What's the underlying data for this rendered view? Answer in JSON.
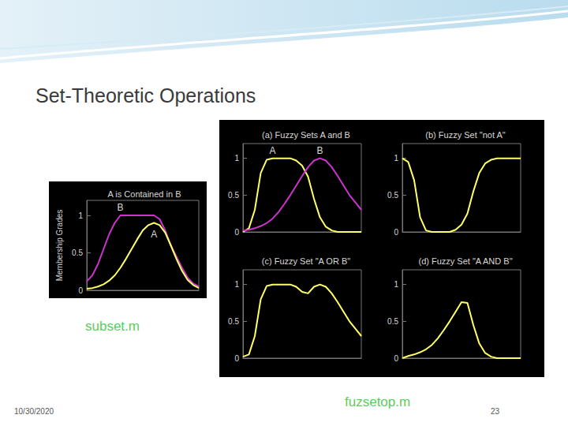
{
  "slide": {
    "title": "Set-Theoretic Operations",
    "captions": [
      "subset.m",
      "fuzsetop.m"
    ],
    "date": "10/30/2020",
    "page": "23"
  },
  "chart_data": [
    {
      "type": "line",
      "title": "A is Contained in B",
      "ylabel": "Membership Grades",
      "x": [
        0,
        5,
        10,
        15,
        20,
        25,
        30,
        35,
        40,
        45,
        50,
        55,
        60,
        65,
        70,
        75,
        80,
        85,
        90,
        95,
        100
      ],
      "series": [
        {
          "name": "B",
          "color": "#cc33cc",
          "values": [
            0.12,
            0.2,
            0.35,
            0.55,
            0.75,
            0.9,
            1,
            1,
            1,
            1,
            1,
            1,
            1,
            0.95,
            0.8,
            0.6,
            0.45,
            0.3,
            0.17,
            0.09,
            0.05
          ]
        },
        {
          "name": "A",
          "color": "#ffff66",
          "values": [
            0.02,
            0.03,
            0.05,
            0.08,
            0.13,
            0.2,
            0.3,
            0.42,
            0.55,
            0.68,
            0.8,
            0.87,
            0.9,
            0.87,
            0.77,
            0.6,
            0.42,
            0.26,
            0.14,
            0.07,
            0.03
          ]
        }
      ],
      "xlim": [
        0,
        100
      ],
      "ylim": [
        0,
        1.2
      ],
      "yticks": [
        0,
        0.5,
        1
      ],
      "tick_labels": "y",
      "grid": false
    },
    {
      "type": "line",
      "title": "(a) Fuzzy Sets A and B",
      "x": [
        0,
        5,
        10,
        15,
        20,
        25,
        30,
        35,
        40,
        45,
        50,
        55,
        60,
        65,
        70,
        75,
        80,
        85,
        90,
        95,
        100
      ],
      "series": [
        {
          "name": "A",
          "color": "#ffff66",
          "values": [
            0,
            0.05,
            0.3,
            0.8,
            0.98,
            1,
            1,
            1,
            1,
            0.97,
            0.9,
            0.75,
            0.45,
            0.2,
            0.07,
            0.02,
            0,
            0,
            0,
            0,
            0
          ]
        },
        {
          "name": "B",
          "color": "#cc33cc",
          "values": [
            0.02,
            0.03,
            0.05,
            0.08,
            0.12,
            0.18,
            0.27,
            0.38,
            0.5,
            0.63,
            0.76,
            0.88,
            0.97,
            1,
            0.97,
            0.88,
            0.76,
            0.63,
            0.5,
            0.4,
            0.3
          ]
        }
      ],
      "xlim": [
        0,
        100
      ],
      "ylim": [
        0,
        1.2
      ],
      "yticks": [
        0,
        0.5,
        1
      ],
      "tick_labels": "y",
      "grid": false
    },
    {
      "type": "line",
      "title": "(b) Fuzzy Set \"not A\"",
      "x": [
        0,
        5,
        10,
        15,
        20,
        25,
        30,
        35,
        40,
        45,
        50,
        55,
        60,
        65,
        70,
        75,
        80,
        85,
        90,
        95,
        100
      ],
      "series": [
        {
          "color": "#ffff66",
          "values": [
            1,
            0.95,
            0.7,
            0.2,
            0.02,
            0,
            0,
            0,
            0,
            0.03,
            0.1,
            0.25,
            0.55,
            0.8,
            0.93,
            0.98,
            1,
            1,
            1,
            1,
            1
          ]
        }
      ],
      "xlim": [
        0,
        100
      ],
      "ylim": [
        0,
        1.2
      ],
      "yticks": [
        0,
        0.5,
        1
      ],
      "tick_labels": "y",
      "grid": false
    },
    {
      "type": "line",
      "title": "(c) Fuzzy Set \"A OR B\"",
      "x": [
        0,
        5,
        10,
        15,
        20,
        25,
        30,
        35,
        40,
        45,
        50,
        55,
        60,
        65,
        70,
        75,
        80,
        85,
        90,
        95,
        100
      ],
      "series": [
        {
          "color": "#ffff66",
          "values": [
            0.02,
            0.05,
            0.3,
            0.8,
            0.98,
            1,
            1,
            1,
            1,
            0.97,
            0.9,
            0.88,
            0.97,
            1,
            0.97,
            0.88,
            0.76,
            0.63,
            0.5,
            0.4,
            0.3
          ]
        }
      ],
      "xlim": [
        0,
        100
      ],
      "ylim": [
        0,
        1.2
      ],
      "yticks": [
        0,
        0.5,
        1
      ],
      "tick_labels": "y",
      "grid": false
    },
    {
      "type": "line",
      "title": "(d) Fuzzy Set \"A AND B\"",
      "x": [
        0,
        5,
        10,
        15,
        20,
        25,
        30,
        35,
        40,
        45,
        50,
        55,
        60,
        65,
        70,
        75,
        80,
        85,
        90,
        95,
        100
      ],
      "series": [
        {
          "color": "#ffff66",
          "values": [
            0,
            0.03,
            0.05,
            0.08,
            0.12,
            0.18,
            0.27,
            0.38,
            0.5,
            0.63,
            0.76,
            0.75,
            0.45,
            0.2,
            0.07,
            0.02,
            0,
            0,
            0,
            0,
            0
          ]
        }
      ],
      "xlim": [
        0,
        100
      ],
      "ylim": [
        0,
        1.2
      ],
      "yticks": [
        0,
        0.5,
        1
      ],
      "tick_labels": "y",
      "grid": false
    }
  ]
}
